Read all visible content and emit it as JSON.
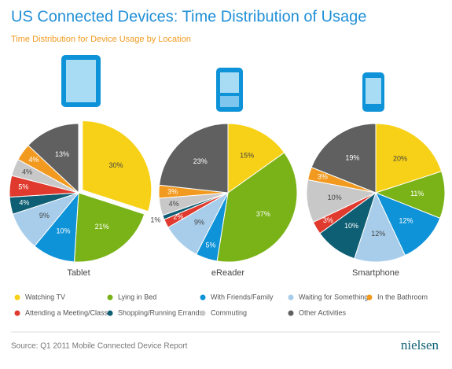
{
  "header": {
    "title": "US Connected Devices: Time Distribution of Usage",
    "subtitle": "Time Distribution for Device Usage by Location"
  },
  "footer": {
    "source": "Source: Q1 2011 Mobile Connected Device Report",
    "logo": "nielsen"
  },
  "chart_data": [
    {
      "type": "pie",
      "title": "Tablet",
      "categories": [
        "Watching TV",
        "Lying in Bed",
        "With Friends/Family",
        "Waiting for Something",
        "Shopping/Running Errands",
        "Attending a Meeting/Class",
        "Commuting",
        "In the Bathroom",
        "Other Activities"
      ],
      "values": [
        30,
        21,
        10,
        9,
        4,
        5,
        4,
        4,
        13
      ],
      "value_labels": [
        "30%",
        "21%",
        "10%",
        "9%",
        "4%",
        "5%",
        "4%",
        "4%",
        "13%"
      ],
      "colors": [
        "#f7d117",
        "#7ab317",
        "#0f93d8",
        "#a8cdea",
        "#0e5f73",
        "#e03a2e",
        "#c8c8c8",
        "#f29a1f",
        "#606060"
      ]
    },
    {
      "type": "pie",
      "title": "eReader",
      "categories": [
        "Watching TV",
        "Lying in Bed",
        "With Friends/Family",
        "Waiting for Something",
        "Attending a Meeting/Class",
        "Shopping/Running Errands",
        "Commuting",
        "In the Bathroom",
        "Other Activities"
      ],
      "values": [
        15,
        37,
        5,
        9,
        2,
        1,
        4,
        3,
        23
      ],
      "value_labels": [
        "15%",
        "37%",
        "5%",
        "9%",
        "2%",
        "1%",
        "4%",
        "3%",
        "23%"
      ],
      "colors": [
        "#f7d117",
        "#7ab317",
        "#0f93d8",
        "#a8cdea",
        "#e03a2e",
        "#0e5f73",
        "#c8c8c8",
        "#f29a1f",
        "#606060"
      ]
    },
    {
      "type": "pie",
      "title": "Smartphone",
      "categories": [
        "Watching TV",
        "Lying in Bed",
        "With Friends/Family",
        "Waiting for Something",
        "Shopping/Running Errands",
        "Attending a Meeting/Class",
        "Commuting",
        "In the Bathroom",
        "Other Activities"
      ],
      "values": [
        20,
        11,
        12,
        12,
        10,
        3,
        10,
        3,
        19
      ],
      "value_labels": [
        "20%",
        "11%",
        "12%",
        "12%",
        "10%",
        "3%",
        "10%",
        "3%",
        "19%"
      ],
      "colors": [
        "#f7d117",
        "#7ab317",
        "#0f93d8",
        "#a8cdea",
        "#0e5f73",
        "#e03a2e",
        "#c8c8c8",
        "#f29a1f",
        "#606060"
      ]
    }
  ]
}
